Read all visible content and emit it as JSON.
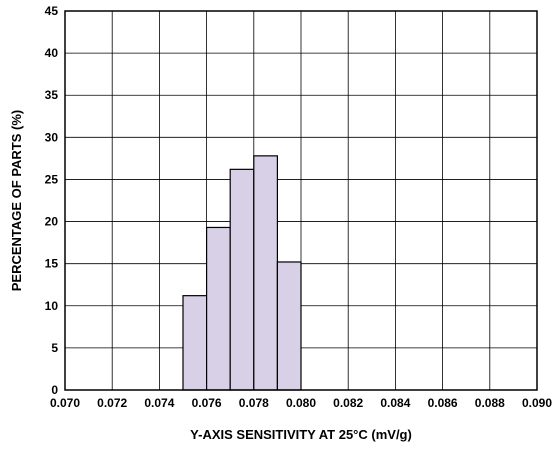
{
  "chart_data": {
    "type": "bar",
    "title": "",
    "xlabel": "Y-AXIS SENSITIVITY AT 25°C (mV/g)",
    "ylabel": "PERCENTAGE OF PARTS (%)",
    "xlim": [
      0.07,
      0.09
    ],
    "ylim": [
      0,
      45
    ],
    "x_ticks": [
      "0.070",
      "0.072",
      "0.074",
      "0.076",
      "0.078",
      "0.080",
      "0.082",
      "0.084",
      "0.086",
      "0.088",
      "0.090"
    ],
    "y_ticks": [
      "0",
      "5",
      "10",
      "15",
      "20",
      "25",
      "30",
      "35",
      "40",
      "45"
    ],
    "grid": true,
    "bins": [
      {
        "start": 0.075,
        "end": 0.076,
        "value": 11.2
      },
      {
        "start": 0.076,
        "end": 0.077,
        "value": 19.3
      },
      {
        "start": 0.077,
        "end": 0.078,
        "value": 26.2
      },
      {
        "start": 0.078,
        "end": 0.079,
        "value": 27.8
      },
      {
        "start": 0.079,
        "end": 0.08,
        "value": 15.2
      }
    ],
    "colors": {
      "bar_fill": "#d8d0e6",
      "bar_stroke": "#000000",
      "grid": "#000000"
    }
  }
}
